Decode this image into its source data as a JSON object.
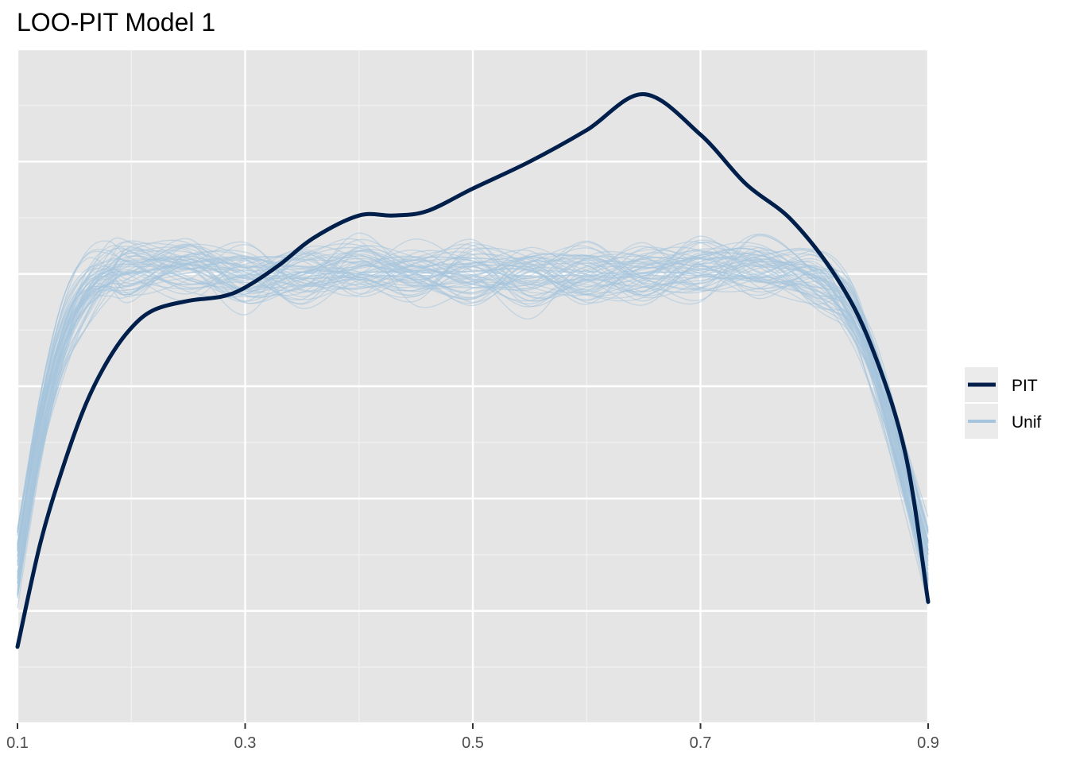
{
  "chart_data": {
    "type": "line",
    "title": "LOO-PIT Model 1",
    "xlabel": "",
    "ylabel": "",
    "xlim": [
      0.1,
      0.9
    ],
    "ylim": [
      0,
      1.5
    ],
    "x_ticks": [
      "0.1",
      "0.3",
      "0.5",
      "0.7",
      "0.9"
    ],
    "x_tick_values": [
      0.1,
      0.3,
      0.5,
      0.7,
      0.9
    ],
    "y_ticks_labeled": false,
    "grid": true,
    "legend_position": "right",
    "background_color": "#e5e5e5",
    "series": [
      {
        "name": "PIT",
        "color": "#011f4b",
        "x": [
          0.1,
          0.12,
          0.14,
          0.16,
          0.18,
          0.2,
          0.22,
          0.25,
          0.28,
          0.3,
          0.33,
          0.36,
          0.4,
          0.43,
          0.46,
          0.5,
          0.55,
          0.6,
          0.65,
          0.7,
          0.74,
          0.78,
          0.82,
          0.85,
          0.88,
          0.9
        ],
        "y": [
          0.17,
          0.4,
          0.57,
          0.71,
          0.81,
          0.88,
          0.92,
          0.94,
          0.95,
          0.97,
          1.02,
          1.08,
          1.13,
          1.13,
          1.14,
          1.19,
          1.25,
          1.32,
          1.4,
          1.31,
          1.2,
          1.12,
          0.99,
          0.84,
          0.6,
          0.27
        ]
      },
      {
        "name": "Unif",
        "color": "#a6c4dd",
        "kind": "replicate-ensemble",
        "n_replicates": 60,
        "x": [
          0.1,
          0.12,
          0.14,
          0.16,
          0.18,
          0.2,
          0.25,
          0.3,
          0.35,
          0.4,
          0.45,
          0.5,
          0.55,
          0.6,
          0.65,
          0.7,
          0.75,
          0.8,
          0.83,
          0.85,
          0.87,
          0.9
        ],
        "y": [
          0.36,
          0.66,
          0.86,
          0.96,
          1.0,
          1.01,
          1.01,
          1.0,
          1.0,
          1.01,
          1.0,
          1.0,
          1.0,
          1.0,
          1.0,
          1.01,
          1.01,
          1.0,
          0.93,
          0.81,
          0.64,
          0.36
        ]
      }
    ]
  }
}
